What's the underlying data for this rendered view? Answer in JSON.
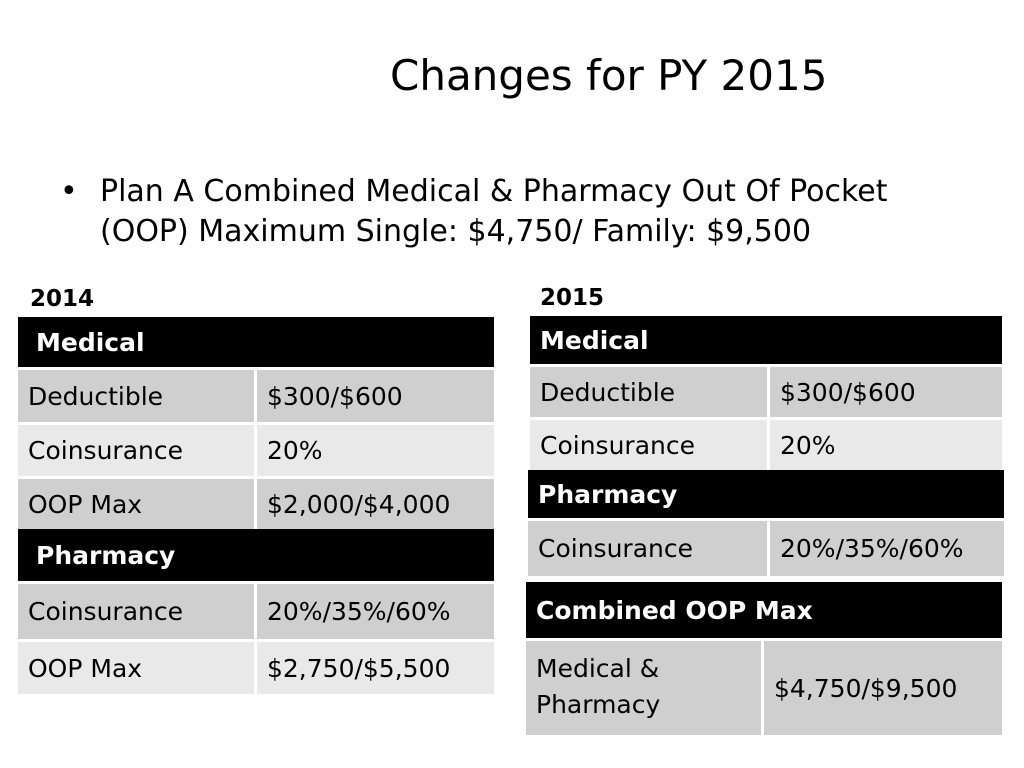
{
  "slide": {
    "title": "Changes for PY 2015",
    "bullet_char": "•",
    "bullet_line1": "Plan A Combined Medical & Pharmacy Out Of Pocket",
    "bullet_line2": "(OOP) Maximum  Single:  $4,750/ Family: $9,500"
  },
  "table_2014": {
    "year": "2014",
    "medical_header": "Medical",
    "medical_rows": [
      {
        "label": "Deductible",
        "value": "$300/$600"
      },
      {
        "label": "Coinsurance",
        "value": "20%"
      },
      {
        "label": "OOP Max",
        "value": "$2,000/$4,000"
      }
    ],
    "pharmacy_header": "Pharmacy",
    "pharmacy_rows": [
      {
        "label": "Coinsurance",
        "value": "20%/35%/60%"
      },
      {
        "label": "OOP Max",
        "value": "$2,750/$5,500"
      }
    ]
  },
  "table_2015": {
    "year": "2015",
    "medical_header": "Medical",
    "medical_rows": [
      {
        "label": "Deductible",
        "value": "$300/$600"
      },
      {
        "label": "Coinsurance",
        "value": "20%"
      }
    ],
    "pharmacy_header": "Pharmacy",
    "pharmacy_rows": [
      {
        "label": "Coinsurance",
        "value": "20%/35%/60%"
      }
    ],
    "combined_header": "Combined OOP Max",
    "combined_label_line1": "Medical &",
    "combined_label_line2": "Pharmacy",
    "combined_value": "$4,750/$9,500"
  }
}
